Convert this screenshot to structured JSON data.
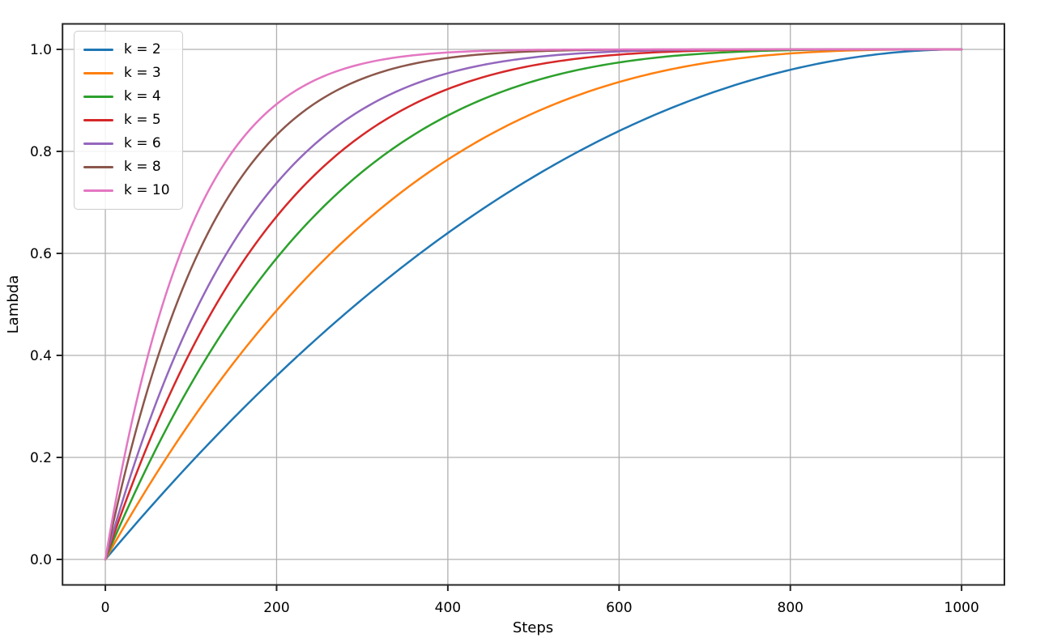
{
  "chart_data": {
    "type": "line",
    "title": "",
    "xlabel": "Steps",
    "ylabel": "Lambda",
    "xlim": [
      -50,
      1050
    ],
    "ylim": [
      -0.05,
      1.05
    ],
    "xticks": {
      "values": [
        0,
        200,
        400,
        600,
        800,
        1000
      ],
      "labels": [
        "0",
        "200",
        "400",
        "600",
        "800",
        "1000"
      ]
    },
    "yticks": {
      "values": [
        0.0,
        0.2,
        0.4,
        0.6,
        0.8,
        1.0
      ],
      "labels": [
        "0.0",
        "0.2",
        "0.4",
        "0.6",
        "0.8",
        "1.0"
      ]
    },
    "grid": true,
    "legend_position": "upper-left",
    "formula": "lambda(s) = 1 - (1 - s/1000)^k",
    "total_steps": 1000,
    "colors": {
      "background": "#ffffff",
      "grid": "#b0b0b0",
      "spine": "#262626",
      "text": "#000000",
      "legend_border": "#cccccc"
    },
    "x": [
      0,
      50,
      100,
      150,
      200,
      250,
      300,
      350,
      400,
      450,
      500,
      550,
      600,
      650,
      700,
      750,
      800,
      850,
      900,
      950,
      1000
    ],
    "series": [
      {
        "name": "k = 2",
        "k": 2,
        "color": "#1f77b4",
        "values": [
          0,
          0.0975,
          0.19,
          0.2775,
          0.36,
          0.4375,
          0.51,
          0.5775,
          0.64,
          0.6975,
          0.75,
          0.7975,
          0.84,
          0.8775,
          0.91,
          0.9375,
          0.96,
          0.9775,
          0.99,
          0.9975,
          1.0
        ]
      },
      {
        "name": "k = 3",
        "k": 3,
        "color": "#ff7f0e",
        "values": [
          0,
          0.1426,
          0.271,
          0.3859,
          0.488,
          0.5781,
          0.657,
          0.7254,
          0.784,
          0.8336,
          0.875,
          0.9089,
          0.936,
          0.9571,
          0.973,
          0.9844,
          0.992,
          0.9966,
          0.999,
          0.9999,
          1.0
        ]
      },
      {
        "name": "k = 4",
        "k": 4,
        "color": "#2ca02c",
        "values": [
          0,
          0.1855,
          0.3439,
          0.478,
          0.5904,
          0.6836,
          0.7599,
          0.8215,
          0.8704,
          0.9085,
          0.9375,
          0.959,
          0.9744,
          0.985,
          0.9919,
          0.9961,
          0.9984,
          0.9995,
          0.9999,
          1.0,
          1.0
        ]
      },
      {
        "name": "k = 5",
        "k": 5,
        "color": "#d62728",
        "values": [
          0,
          0.2262,
          0.4095,
          0.5563,
          0.6723,
          0.7627,
          0.8319,
          0.884,
          0.9222,
          0.9497,
          0.9688,
          0.9815,
          0.9898,
          0.9947,
          0.9976,
          0.999,
          0.9997,
          0.9999,
          1.0,
          1.0,
          1.0
        ]
      },
      {
        "name": "k = 6",
        "k": 6,
        "color": "#9467bd",
        "values": [
          0,
          0.2649,
          0.4686,
          0.6229,
          0.7379,
          0.822,
          0.8824,
          0.9246,
          0.9533,
          0.9723,
          0.9844,
          0.9917,
          0.9959,
          0.9982,
          0.9993,
          0.9998,
          0.9999,
          1.0,
          1.0,
          1.0,
          1.0
        ]
      },
      {
        "name": "k = 8",
        "k": 8,
        "color": "#8c564b",
        "values": [
          0,
          0.3366,
          0.5695,
          0.7275,
          0.8322,
          0.8999,
          0.9424,
          0.9681,
          0.9832,
          0.9916,
          0.9961,
          0.9983,
          0.9993,
          0.9998,
          0.9999,
          1.0,
          1.0,
          1.0,
          1.0,
          1.0,
          1.0
        ]
      },
      {
        "name": "k = 10",
        "k": 10,
        "color": "#e377c2",
        "values": [
          0,
          0.4013,
          0.6513,
          0.8031,
          0.8926,
          0.9437,
          0.9718,
          0.9865,
          0.994,
          0.9975,
          0.999,
          0.9997,
          0.9999,
          1.0,
          1.0,
          1.0,
          1.0,
          1.0,
          1.0,
          1.0,
          1.0
        ]
      }
    ]
  }
}
